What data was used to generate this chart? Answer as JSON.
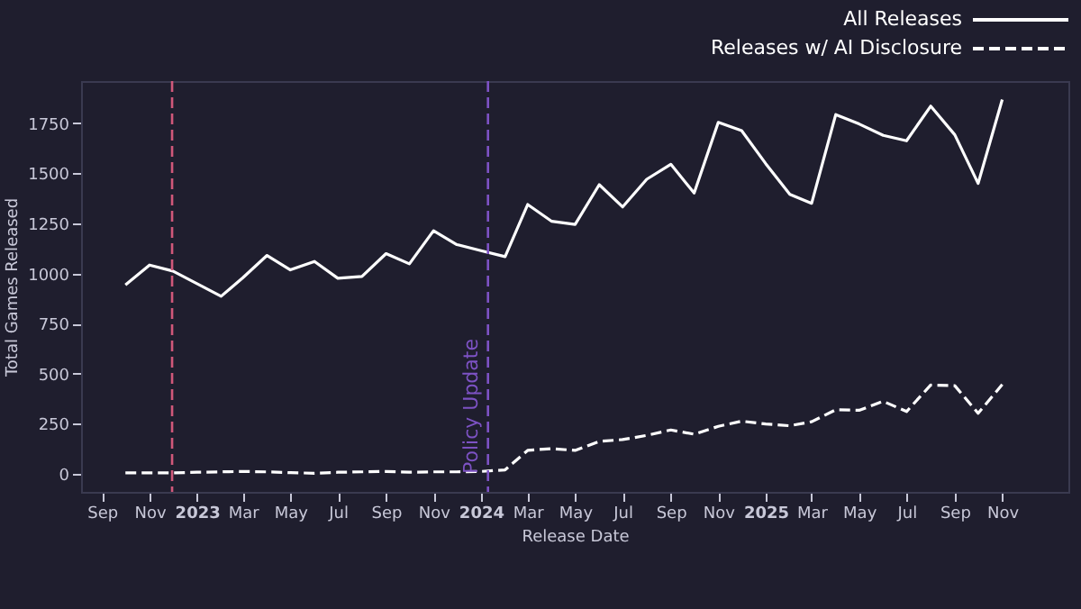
{
  "chart_data": {
    "type": "line",
    "xlabel": "Release Date",
    "ylabel": "Total Games Released",
    "x": [
      "2022-10",
      "2022-11",
      "2022-12",
      "2023-01",
      "2023-02",
      "2023-03",
      "2023-04",
      "2023-05",
      "2023-06",
      "2023-07",
      "2023-08",
      "2023-09",
      "2023-10",
      "2023-11",
      "2023-12",
      "2024-01",
      "2024-02",
      "2024-03",
      "2024-04",
      "2024-05",
      "2024-06",
      "2024-07",
      "2024-08",
      "2024-09",
      "2024-10",
      "2024-11",
      "2024-12",
      "2025-01",
      "2025-02",
      "2025-03",
      "2025-04",
      "2025-05",
      "2025-06",
      "2025-07",
      "2025-08",
      "2025-09",
      "2025-10",
      "2025-11"
    ],
    "series": [
      {
        "name": "All Releases",
        "color": "#ffffff",
        "line_style": "solid",
        "values": [
          943,
          1042,
          1012,
          949,
          886,
          979,
          1090,
          1018,
          1060,
          976,
          985,
          1099,
          1048,
          1213,
          1144,
          1114,
          1084,
          1344,
          1260,
          1245,
          1443,
          1332,
          1470,
          1545,
          1401,
          1754,
          1713,
          1548,
          1395,
          1350,
          1793,
          1746,
          1689,
          1662,
          1835,
          1692,
          1449,
          1868
        ]
      },
      {
        "name": "Releases w/ AI Disclosure",
        "color": "#ffffff",
        "line_style": "dashed",
        "values": [
          5,
          5,
          5,
          8,
          10,
          12,
          10,
          6,
          3,
          8,
          10,
          12,
          8,
          10,
          10,
          12,
          20,
          117,
          126,
          117,
          162,
          171,
          192,
          219,
          198,
          237,
          263,
          249,
          240,
          260,
          320,
          317,
          362,
          311,
          443,
          440,
          302,
          446
        ]
      }
    ],
    "xlim": [
      "2022-08-05",
      "2026-01-25"
    ],
    "xticks": [
      {
        "value": "2022-09",
        "label": "Sep"
      },
      {
        "value": "2022-11",
        "label": "Nov"
      },
      {
        "value": "2023-01",
        "label": "2023"
      },
      {
        "value": "2023-03",
        "label": "Mar"
      },
      {
        "value": "2023-05",
        "label": "May"
      },
      {
        "value": "2023-07",
        "label": "Jul"
      },
      {
        "value": "2023-09",
        "label": "Sep"
      },
      {
        "value": "2023-11",
        "label": "Nov"
      },
      {
        "value": "2024-01",
        "label": "2024"
      },
      {
        "value": "2024-03",
        "label": "Mar"
      },
      {
        "value": "2024-05",
        "label": "May"
      },
      {
        "value": "2024-07",
        "label": "Jul"
      },
      {
        "value": "2024-09",
        "label": "Sep"
      },
      {
        "value": "2024-11",
        "label": "Nov"
      },
      {
        "value": "2025-01",
        "label": "2025"
      },
      {
        "value": "2025-03",
        "label": "Mar"
      },
      {
        "value": "2025-05",
        "label": "May"
      },
      {
        "value": "2025-07",
        "label": "Jul"
      },
      {
        "value": "2025-09",
        "label": "Sep"
      },
      {
        "value": "2025-11",
        "label": "Nov"
      }
    ],
    "ylim": [
      -90,
      1960
    ],
    "yticks": [
      0,
      250,
      500,
      750,
      1000,
      1250,
      1500,
      1750
    ],
    "ref_lines": [
      {
        "axis": "x",
        "value": "2022-11-30",
        "color": "#d0587a",
        "line_style": "dashed"
      },
      {
        "axis": "x",
        "value": "2024-01-10",
        "label": "Policy Update",
        "color": "#7d52c4",
        "line_style": "dashed"
      }
    ],
    "grid": false,
    "legend": "top right",
    "marker": "none"
  }
}
